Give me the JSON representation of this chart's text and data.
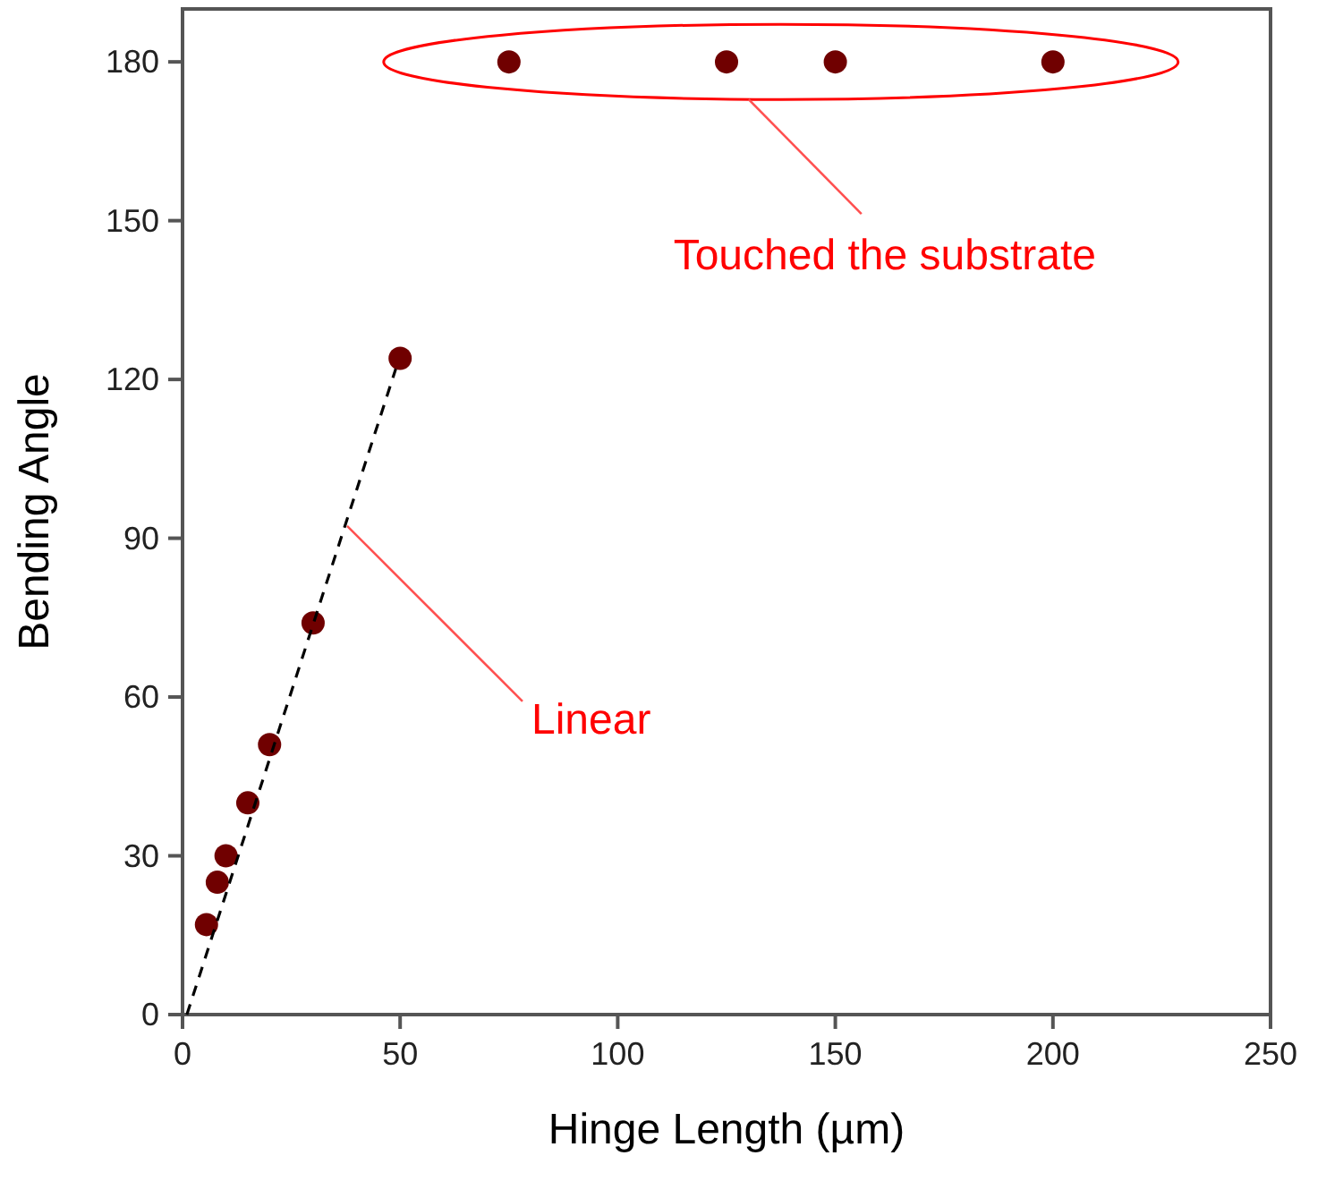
{
  "chart_data": {
    "type": "scatter",
    "xlabel": "Hinge Length (µm)",
    "ylabel": "Bending Angle",
    "series": [
      {
        "color": "#700000",
        "x": [
          5.5,
          8,
          10,
          15,
          20,
          30,
          50,
          75,
          125,
          150,
          200
        ],
        "values": [
          17,
          25,
          30,
          40,
          51,
          74,
          124,
          180,
          180,
          180,
          180
        ]
      },
      {
        "type": "line",
        "color": "#000000",
        "line_style": "dashed",
        "marker": "none",
        "x": [
          1,
          49
        ],
        "values": [
          0,
          122
        ]
      }
    ],
    "annotations": [
      {
        "text": "Linear",
        "x": 37,
        "y": 93
      },
      "Touched the substrate"
    ],
    "xlim": [
      0,
      250
    ],
    "ylim": [
      0,
      190
    ],
    "xticks": [
      0,
      50,
      100,
      150,
      200,
      250
    ],
    "yticks": [
      0,
      30,
      60,
      90,
      120,
      150,
      180
    ],
    "grid": false,
    "marker": "circle"
  }
}
